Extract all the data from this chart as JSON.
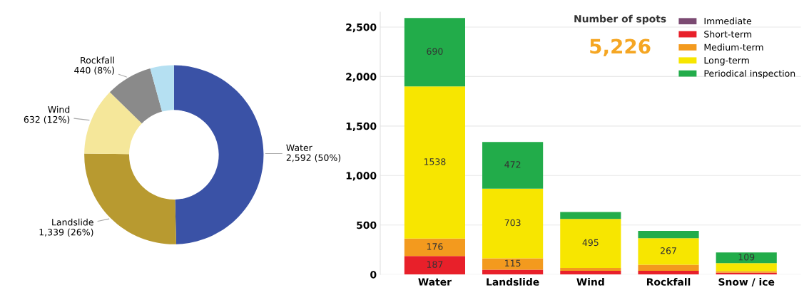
{
  "chart_data": [
    {
      "type": "donut",
      "categories": [
        "Water",
        "Landslide",
        "Wind",
        "Rockfall",
        null
      ],
      "values": [
        2592,
        1339,
        632,
        440,
        223
      ],
      "colors": [
        "#3a52a6",
        "#b89a30",
        "#f5e79a",
        "#8a8a8a",
        "#b5e0f2"
      ],
      "value_labels": [
        "2,592 (50%)",
        "1,339 (26%)",
        "632 (12%)",
        "440 (8%)",
        null
      ]
    },
    {
      "type": "bar",
      "stacked": true,
      "title": "Number of spots",
      "subtitle": "5,226",
      "categories": [
        "Water",
        "Landslide",
        "Wind",
        "Rockfall",
        "Snow / ice"
      ],
      "series": [
        {
          "name": "Immediate",
          "color": "#7b4a72",
          "values": [
            0,
            0,
            0,
            0,
            0
          ],
          "value_labels": [
            null,
            null,
            null,
            null,
            null
          ]
        },
        {
          "name": "Short-term",
          "color": "#e8202a",
          "values": [
            187,
            49,
            37,
            37,
            17
          ],
          "value_labels": [
            "187",
            null,
            null,
            null,
            null
          ]
        },
        {
          "name": "Medium-term",
          "color": "#f39a1e",
          "values": [
            176,
            115,
            30,
            62,
            17
          ],
          "value_labels": [
            "176",
            "115",
            null,
            null,
            null
          ]
        },
        {
          "name": "Long-term",
          "color": "#f7e600",
          "values": [
            1538,
            703,
            495,
            267,
            80
          ],
          "value_labels": [
            "1538",
            "703",
            "495",
            "267",
            null
          ]
        },
        {
          "name": "Periodical inspection",
          "color": "#22ac4a",
          "values": [
            690,
            472,
            70,
            74,
            109
          ],
          "value_labels": [
            "690",
            "472",
            null,
            null,
            "109"
          ]
        }
      ],
      "ylim": [
        0,
        2650
      ],
      "yticks": [
        0,
        500,
        {
          "value": 1000,
          "label": "1,000"
        },
        {
          "value": 1500,
          "label": "1,500"
        },
        {
          "value": 2000,
          "label": "2,000"
        },
        {
          "value": 2500,
          "label": "2,500"
        }
      ],
      "grid": "y",
      "legend": "top right"
    }
  ]
}
